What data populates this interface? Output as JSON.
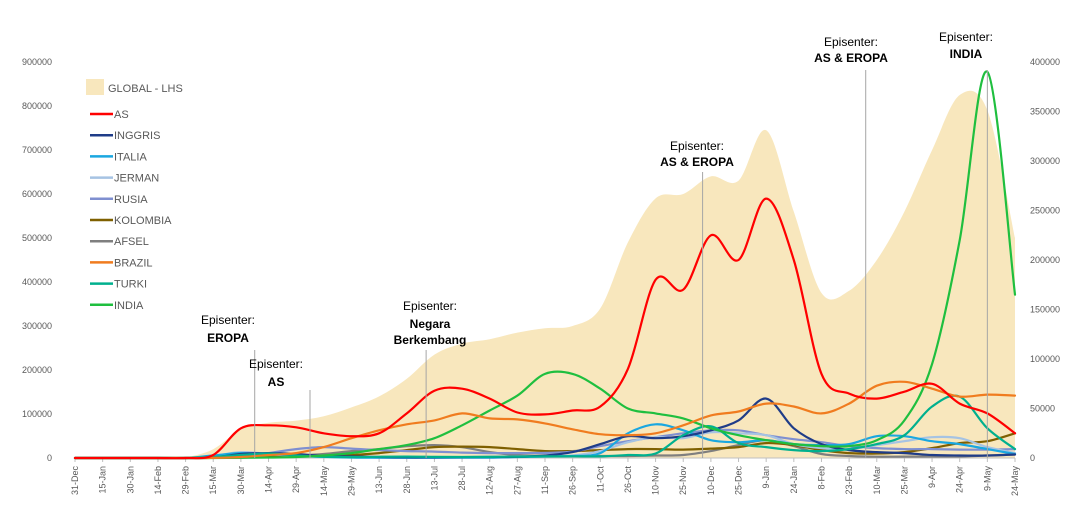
{
  "chart_data": {
    "type": "line",
    "title": "",
    "x": [
      "31-Dec",
      "15-Jan",
      "30-Jan",
      "14-Feb",
      "29-Feb",
      "15-Mar",
      "30-Mar",
      "14-Apr",
      "29-Apr",
      "14-May",
      "29-May",
      "13-Jun",
      "28-Jun",
      "13-Jul",
      "28-Jul",
      "12-Aug",
      "27-Aug",
      "11-Sep",
      "26-Sep",
      "11-Oct",
      "26-Oct",
      "10-Nov",
      "25-Nov",
      "10-Dec",
      "25-Dec",
      "9-Jan",
      "24-Jan",
      "8-Feb",
      "23-Feb",
      "10-Mar",
      "25-Mar",
      "9-Apr",
      "24-Apr",
      "9-May",
      "24-May"
    ],
    "y_left_ticks": [
      "0",
      "100000",
      "200000",
      "300000",
      "400000",
      "500000",
      "600000",
      "700000",
      "800000",
      "900000"
    ],
    "y_right_ticks": [
      "0",
      "50000",
      "100000",
      "150000",
      "200000",
      "250000",
      "300000",
      "350000",
      "400000"
    ],
    "ylim_left": [
      0,
      900000
    ],
    "ylim_right": [
      0,
      400000
    ],
    "legend_position": "top-left",
    "area_series": {
      "name": "GLOBAL - LHS",
      "color": "#f8e7bd",
      "values": [
        0,
        0,
        0,
        1000,
        2000,
        20000,
        65000,
        80000,
        85000,
        95000,
        115000,
        140000,
        180000,
        235000,
        260000,
        270000,
        285000,
        295000,
        300000,
        340000,
        490000,
        590000,
        600000,
        640000,
        630000,
        745000,
        560000,
        375000,
        380000,
        450000,
        560000,
        700000,
        825000,
        790000,
        500000
      ]
    },
    "series": [
      {
        "name": "AS",
        "color": "#ff0000",
        "values": [
          0,
          0,
          0,
          0,
          0,
          3000,
          30000,
          33000,
          31000,
          25000,
          22000,
          25000,
          45000,
          68000,
          70000,
          60000,
          46000,
          44000,
          48000,
          52000,
          90000,
          180000,
          170000,
          225000,
          200000,
          262000,
          200000,
          85000,
          65000,
          60000,
          67000,
          75000,
          55000,
          45000,
          25000
        ]
      },
      {
        "name": "INGGRIS",
        "color": "#1f3c88",
        "values": [
          0,
          0,
          0,
          0,
          0,
          500,
          4000,
          5000,
          4000,
          2000,
          1500,
          1000,
          700,
          700,
          900,
          1000,
          1200,
          2500,
          6000,
          14000,
          22000,
          20000,
          22000,
          28000,
          38000,
          60000,
          30000,
          14000,
          8000,
          6000,
          5000,
          3000,
          2500,
          2500,
          3500
        ]
      },
      {
        "name": "ITALIA",
        "color": "#1aa7e0",
        "values": [
          0,
          0,
          0,
          0,
          0,
          2500,
          5000,
          4000,
          2500,
          1200,
          500,
          300,
          250,
          250,
          300,
          400,
          1000,
          1500,
          2000,
          5000,
          25000,
          34000,
          28000,
          18000,
          16000,
          18000,
          14000,
          13000,
          14000,
          22000,
          22000,
          17000,
          14000,
          9000,
          4000
        ]
      },
      {
        "name": "JERMAN",
        "color": "#a6c3e3",
        "values": [
          0,
          0,
          0,
          0,
          0,
          2000,
          6000,
          4000,
          2000,
          1000,
          500,
          400,
          400,
          500,
          800,
          1200,
          1500,
          1800,
          2500,
          7000,
          16000,
          21000,
          20000,
          26000,
          25000,
          23000,
          14000,
          10000,
          9000,
          13000,
          17000,
          21000,
          20000,
          11000,
          5000
        ]
      },
      {
        "name": "RUSIA",
        "color": "#7f8fd0",
        "values": [
          0,
          0,
          0,
          0,
          0,
          200,
          1000,
          5000,
          9000,
          11000,
          9500,
          8000,
          7000,
          6500,
          5500,
          5000,
          5000,
          5200,
          6500,
          12000,
          17000,
          21000,
          25000,
          28000,
          28000,
          23000,
          19000,
          16000,
          12000,
          10000,
          9000,
          9000,
          8500,
          8500,
          9000
        ]
      },
      {
        "name": "KOLOMBIA",
        "color": "#7f6000",
        "values": [
          0,
          0,
          0,
          0,
          0,
          100,
          500,
          1000,
          1500,
          2000,
          3000,
          5000,
          8000,
          11000,
          11500,
          11000,
          9000,
          7000,
          7000,
          8000,
          9000,
          9000,
          8500,
          9500,
          11000,
          15000,
          13000,
          8000,
          5000,
          4500,
          6000,
          10000,
          15000,
          17000,
          25000
        ]
      },
      {
        "name": "AFSEL",
        "color": "#7f7f7f",
        "values": [
          0,
          0,
          0,
          0,
          0,
          100,
          800,
          1500,
          2500,
          4000,
          7000,
          9000,
          12000,
          13000,
          11000,
          6000,
          3000,
          2000,
          2000,
          2000,
          2000,
          2500,
          3000,
          7000,
          13000,
          18000,
          12000,
          4000,
          2000,
          1300,
          1400,
          1500,
          1500,
          2500,
          3500
        ]
      },
      {
        "name": "BRAZIL",
        "color": "#f07c1f",
        "values": [
          0,
          0,
          0,
          0,
          0,
          100,
          1000,
          3000,
          5000,
          11000,
          20000,
          28000,
          34000,
          38000,
          45000,
          40000,
          39000,
          35000,
          29000,
          24000,
          23000,
          25000,
          33000,
          43000,
          47000,
          55000,
          52000,
          45000,
          55000,
          73000,
          77000,
          70000,
          62000,
          64000,
          63000
        ]
      },
      {
        "name": "TURKI",
        "color": "#00b08e",
        "values": [
          0,
          0,
          0,
          0,
          0,
          1000,
          3000,
          4500,
          2500,
          1200,
          900,
          1200,
          1400,
          1100,
          1000,
          1100,
          1400,
          1600,
          1700,
          1600,
          3000,
          4500,
          23000,
          32000,
          15000,
          11000,
          8000,
          7000,
          9000,
          14000,
          23000,
          52000,
          62000,
          30000,
          9000
        ]
      },
      {
        "name": "INDIA",
        "color": "#1fbf3f",
        "values": [
          0,
          0,
          0,
          0,
          0,
          50,
          200,
          500,
          1000,
          2500,
          5000,
          9000,
          13000,
          20000,
          33000,
          48000,
          63000,
          85000,
          85000,
          70000,
          50000,
          45000,
          40000,
          30000,
          23000,
          18000,
          14000,
          12000,
          12000,
          18000,
          38000,
          95000,
          220000,
          390000,
          165000
        ]
      }
    ],
    "annotations": [
      {
        "label": "Episenter:",
        "bold": "EROPA",
        "x_index": 6.5
      },
      {
        "label": "Episenter:",
        "bold": "AS",
        "x_index": 8.5
      },
      {
        "label": "Episenter:",
        "bold": "Negara Berkembang",
        "x_index": 12.7
      },
      {
        "label": "Episenter:",
        "bold": "AS & EROPA",
        "x_index": 22.7
      },
      {
        "label": "Episenter:",
        "bold": "AS & EROPA",
        "x_index": 28.6
      },
      {
        "label": "Episenter:",
        "bold": "INDIA",
        "x_index": 33.0
      }
    ],
    "annotation_text": {
      "label": "Episenter:",
      "eropa": "EROPA",
      "as": "AS",
      "negara_1": "Negara",
      "negara_2": "Berkembang",
      "as_eropa": "AS & EROPA",
      "india": "INDIA"
    }
  }
}
